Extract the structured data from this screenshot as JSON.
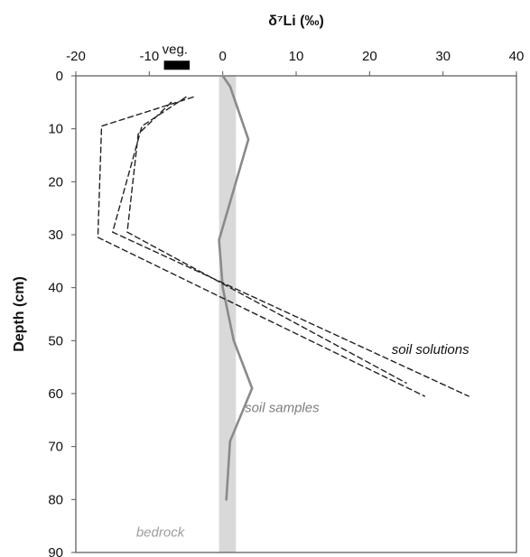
{
  "chart_data": {
    "type": "line",
    "x_axis": {
      "label": "δ⁷Li (‰)",
      "position": "top",
      "range": [
        -20,
        40
      ],
      "ticks": [
        -20,
        -10,
        0,
        10,
        20,
        30,
        40
      ],
      "tick_labels": [
        "-20",
        "-10",
        "0",
        "10",
        "20",
        "30",
        "40"
      ]
    },
    "y_axis": {
      "label": "Depth (cm)",
      "range": [
        0,
        90
      ],
      "inverted": true,
      "ticks": [
        0,
        10,
        20,
        30,
        40,
        50,
        60,
        70,
        80,
        90
      ],
      "tick_labels": [
        "0",
        "10",
        "20",
        "30",
        "40",
        "50",
        "60",
        "70",
        "80",
        "90"
      ]
    },
    "grid": false,
    "series": [
      {
        "name": "soil samples",
        "style": "solid",
        "color": "#8a8a8a",
        "points": [
          [
            0,
            0
          ],
          [
            1,
            2
          ],
          [
            3.5,
            12
          ],
          [
            -0.5,
            31
          ],
          [
            0,
            40
          ],
          [
            1.5,
            50
          ],
          [
            4,
            59
          ],
          [
            1,
            69
          ],
          [
            0.5,
            80
          ]
        ]
      },
      {
        "style": "dashed",
        "color": "#222222",
        "points": [
          [
            -4,
            4
          ],
          [
            -16.5,
            9.5
          ],
          [
            -17,
            30.5
          ],
          [
            27.5,
            60.5
          ]
        ]
      },
      {
        "style": "dashed",
        "color": "#222222",
        "points": [
          [
            -5,
            4
          ],
          [
            -11,
            9.5
          ],
          [
            -15,
            29.5
          ],
          [
            33.5,
            60.5
          ]
        ]
      },
      {
        "style": "dashed",
        "color": "#222222",
        "points": [
          [
            -7,
            5
          ],
          [
            -11.5,
            11
          ],
          [
            -13,
            29.5
          ],
          [
            25,
            58
          ]
        ]
      }
    ],
    "bedrock_band": {
      "x_range": [
        -0.5,
        1.8
      ],
      "color": "#d9d9d9"
    },
    "veg_bar": {
      "x_range": [
        -8,
        -4.5
      ],
      "depth": -2,
      "color": "#000000"
    },
    "annotations": {
      "soil_solutions": {
        "text": "soil solutions",
        "x": 23,
        "y": 52.5,
        "color": "#111111"
      },
      "soil_samples": {
        "text": "soil samples",
        "x": 3,
        "y": 63.5,
        "color": "#7d7d7d"
      },
      "bedrock": {
        "text": "bedrock",
        "x": -8.5,
        "y": 87,
        "color": "#9e9e9e"
      },
      "veg": {
        "text": "veg.",
        "x": -6.5,
        "y": -4.2,
        "color": "#111111"
      }
    }
  }
}
